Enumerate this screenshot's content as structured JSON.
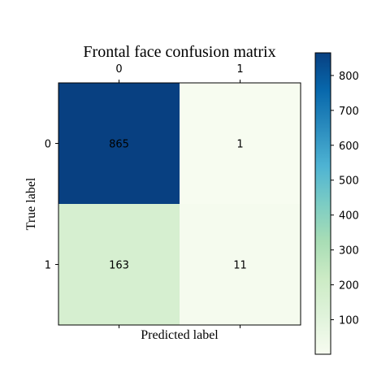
{
  "chart_data": {
    "type": "heatmap",
    "title": "Frontal face confusion matrix",
    "xlabel": "Predicted label",
    "ylabel": "True label",
    "x_ticks": [
      "0",
      "1"
    ],
    "y_ticks": [
      "0",
      "1"
    ],
    "matrix": [
      [
        865,
        1
      ],
      [
        163,
        11
      ]
    ],
    "colormap": "GnBu",
    "colorbar": {
      "ticks": [
        100,
        200,
        300,
        400,
        500,
        600,
        700,
        800
      ],
      "range": [
        1,
        865
      ]
    },
    "cell_text_colors": [
      "#000000"
    ]
  }
}
